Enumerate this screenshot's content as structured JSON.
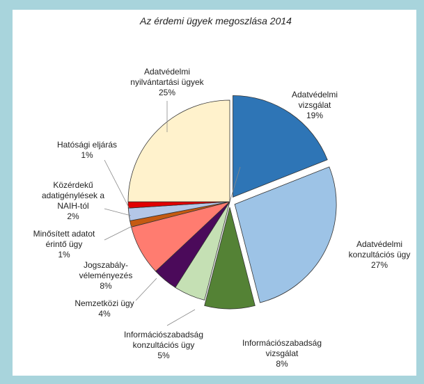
{
  "chart_data": {
    "type": "pie",
    "title": "Az érdemi ügyek megoszlása 2014",
    "categories": [
      "Adatvédelmi\nvizsgálat",
      "Adatvédelmi\nkonzultációs ügy",
      "Információszabadság\nvizsgálat",
      "Információszabadság\nkonzultációs ügy",
      "Nemzetközi ügy",
      "Jogszabály-\nvéleményezés",
      "Minősített adatot\nérintő ügy",
      "Közérdekű\nadatigénylések a\nNAIH-tól",
      "Hatósági eljárás",
      "Adatvédelmi\nnyilvántartási ügyek"
    ],
    "values": [
      19,
      27,
      8,
      5,
      4,
      8,
      1,
      2,
      1,
      25
    ],
    "value_labels": [
      "19%",
      "27%",
      "8%",
      "5%",
      "4%",
      "8%",
      "1%",
      "2%",
      "1%",
      "25%"
    ],
    "colors": [
      "#2e75b6",
      "#9dc3e6",
      "#548235",
      "#c5e0b4",
      "#4b0a5a",
      "#ff7c70",
      "#c55a11",
      "#b4c7e7",
      "#e00000",
      "#fff2cc"
    ]
  }
}
